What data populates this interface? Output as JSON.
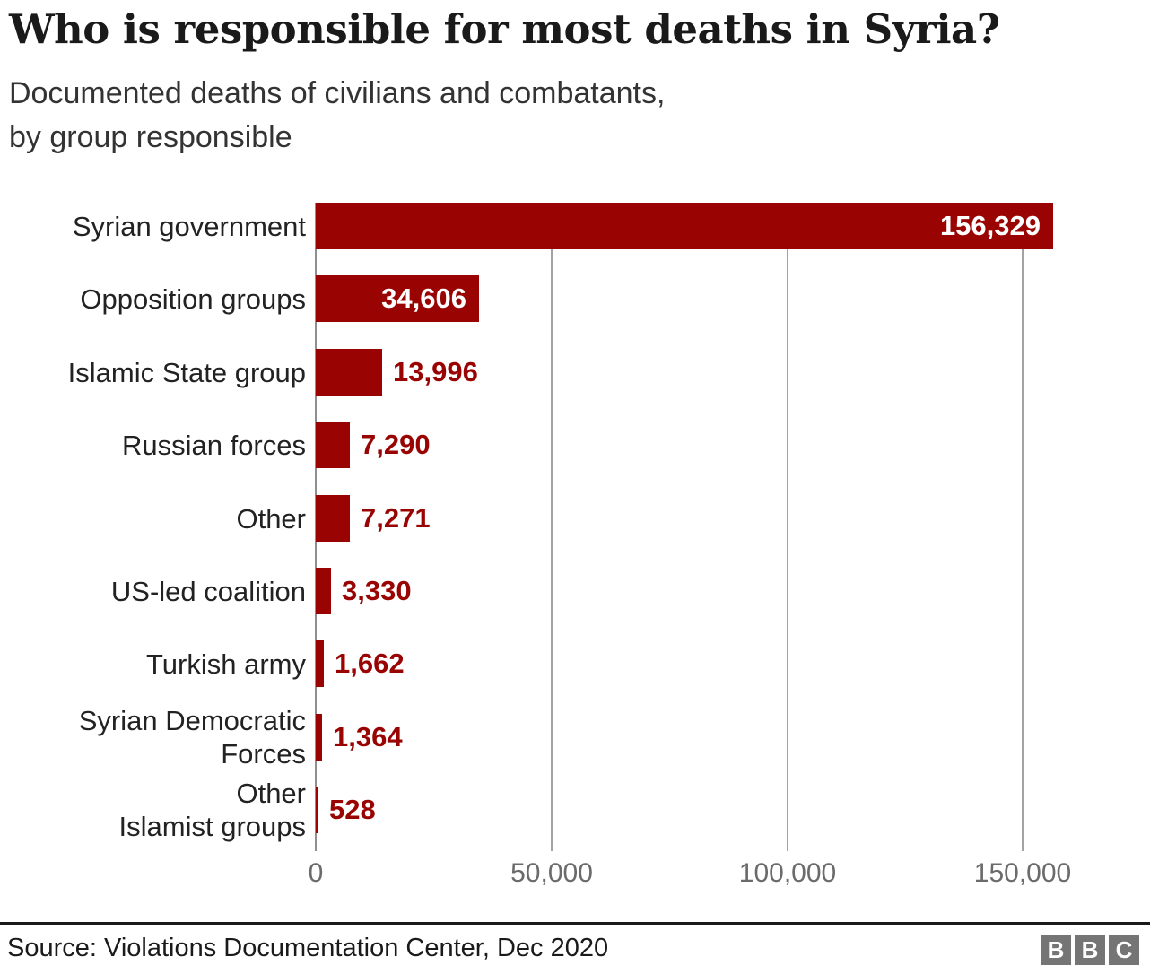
{
  "header": {
    "title": "Who is responsible for most deaths in Syria?",
    "subtitle": "Documented deaths of civilians and combatants,\nby group responsible"
  },
  "chart_data": {
    "type": "bar",
    "orientation": "horizontal",
    "title": "Who is responsible for most deaths in Syria?",
    "subtitle": "Documented deaths of civilians and combatants, by group responsible",
    "categories": [
      "Syrian government",
      "Opposition groups",
      "Islamic State group",
      "Russian forces",
      "Other",
      "US-led coalition",
      "Turkish army",
      "Syrian Democratic Forces",
      "Other Islamist groups"
    ],
    "category_display": [
      "Syrian government",
      "Opposition groups",
      "Islamic State group",
      "Russian forces",
      "Other",
      "US-led coalition",
      "Turkish army",
      "Syrian Democratic\nForces",
      "Other\nIslamist groups"
    ],
    "values": [
      156329,
      34606,
      13996,
      7290,
      7271,
      3330,
      1662,
      1364,
      528
    ],
    "value_labels": [
      "156,329",
      "34,606",
      "13,996",
      "7,290",
      "7,271",
      "3,330",
      "1,662",
      "1,364",
      "528"
    ],
    "xlabel": "",
    "ylabel": "",
    "xlim": [
      0,
      165000
    ],
    "x_ticks": {
      "values": [
        0,
        50000,
        100000,
        150000
      ],
      "labels": [
        "0",
        "50,000",
        "100,000",
        "150,000"
      ]
    },
    "gridlines": [
      50000,
      100000,
      150000
    ],
    "legend_position": "none",
    "colors": {
      "bar": "#990403",
      "value_label_inside": "#ffffff",
      "value_label_outside": "#990403",
      "axis_line": "#8f8f8f",
      "gridline": "#a3a3a3",
      "tick_label": "#6b6b6b",
      "category_label": "#222222"
    }
  },
  "footer": {
    "source": "Source: Violations Documentation Center, Dec 2020",
    "logo": {
      "letters": [
        "B",
        "B",
        "C"
      ],
      "block_color": "#757575",
      "letter_color": "#ffffff"
    }
  }
}
